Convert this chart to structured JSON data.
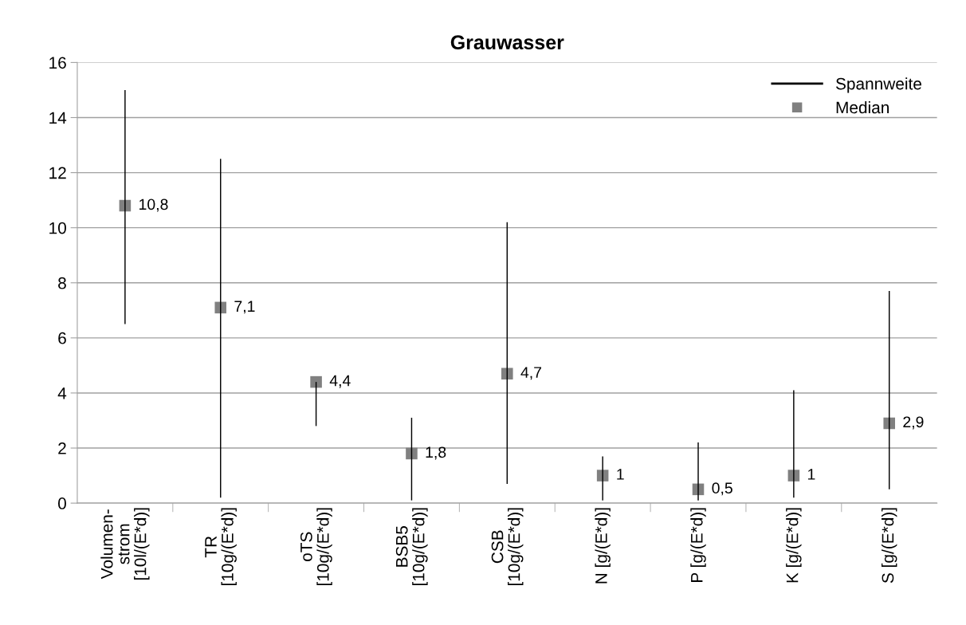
{
  "chart_data": {
    "type": "bar",
    "title": "Grauwasser",
    "categories": [
      "Volumen-\nstrom\n[10l/(E*d)]",
      "TR\n[10g/(E*d)]",
      "oTS\n[10g/(E*d)]",
      "BSB5\n[10g/(E*d)]",
      "CSB\n[10g/(E*d)]",
      "N [g/(E*d)]",
      "P [g/(E*d)]",
      "K [g/(E*d)]",
      "S [g/(E*d)]"
    ],
    "series": [
      {
        "name": "Spannweite",
        "color": "#000000",
        "base": [
          6.5,
          0.2,
          2.8,
          0.1,
          0.7,
          0.1,
          0.1,
          0.2,
          0.5
        ],
        "values": [
          8.5,
          12.3,
          1.6,
          3.0,
          9.5,
          1.6,
          2.1,
          3.9,
          7.2
        ]
      },
      {
        "name": "Median",
        "type": "scatter",
        "color": "#808080",
        "marker": "square",
        "values": [
          10.8,
          7.1,
          4.4,
          1.8,
          4.7,
          1,
          0.5,
          1,
          2.9
        ],
        "value_labels": [
          "10,8",
          "7,1",
          "4,4",
          "1,8",
          "4,7",
          "1",
          "0,5",
          "1",
          "2,9"
        ]
      }
    ],
    "ylim": [
      0,
      16
    ],
    "yticks": [
      0,
      2,
      4,
      6,
      8,
      10,
      12,
      14,
      16
    ],
    "grid": "y",
    "legend": "top right"
  }
}
